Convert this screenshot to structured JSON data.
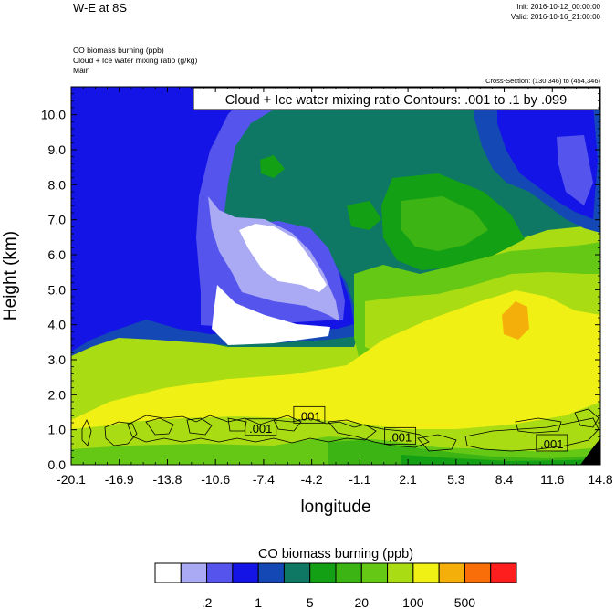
{
  "header": {
    "title": "W-E at 8S",
    "init": "Init: 2016-10-12_00:00:00",
    "valid": "Valid: 2016-10-16_21:00:00",
    "field_lines": [
      "CO biomass burning   (ppb)",
      "Cloud + Ice water mixing ratio   (g/kg)",
      "Main"
    ],
    "cross_section": "Cross-Section: (130,346) to (454,346)"
  },
  "chart_data": {
    "type": "heatmap",
    "contour_label": "Cloud + Ice water mixing ratio Contours: .001 to .1 by .099",
    "xlabel": "longitude",
    "ylabel": "Height (km)",
    "xlim": [
      -20.1,
      14.8
    ],
    "ylim": [
      0.0,
      10.8
    ],
    "x_ticks": [
      "-20.1",
      "-16.9",
      "-13.8",
      "-10.6",
      "-7.4",
      "-4.2",
      "-1.1",
      "2.1",
      "5.3",
      "8.4",
      "11.6",
      "14.8"
    ],
    "y_ticks": [
      "0.0",
      "1.0",
      "2.0",
      "3.0",
      "4.0",
      "5.0",
      "6.0",
      "7.0",
      "8.0",
      "9.0",
      "10.0"
    ],
    "contour_value_labels": [
      {
        "text": ".001",
        "lon": -7.6,
        "height": 1.05
      },
      {
        "text": ".001",
        "lon": -4.4,
        "height": 1.4
      },
      {
        "text": ".001",
        "lon": 1.6,
        "height": 0.8
      },
      {
        "text": ".001",
        "lon": 11.6,
        "height": 0.6
      }
    ],
    "colorbar": {
      "title": "CO biomass burning  (ppb)",
      "colors": [
        "#ffffff",
        "#a9a9f4",
        "#5555ee",
        "#1414e6",
        "#1448b4",
        "#0e7864",
        "#14a014",
        "#3cb414",
        "#64c814",
        "#aadc14",
        "#f0f014",
        "#f5af0a",
        "#fa6e0a",
        "#ff1e1e"
      ],
      "tick_labels": [
        ".2",
        "1",
        "5",
        "20",
        "100",
        "500"
      ]
    }
  }
}
